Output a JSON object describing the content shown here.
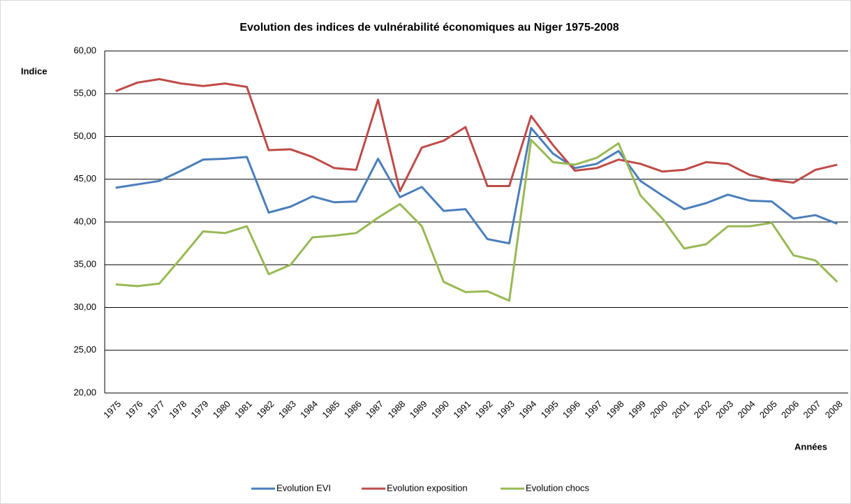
{
  "chart_data": {
    "type": "line",
    "title": "Evolution des indices de vulnérabilité économiques au Niger 1975-2008",
    "y_label": "Indice",
    "x_label": "Années",
    "categories": [
      "1975",
      "1976",
      "1977",
      "1978",
      "1979",
      "1980",
      "1981",
      "1982",
      "1983",
      "1984",
      "1985",
      "1986",
      "1987",
      "1988",
      "1989",
      "1990",
      "1991",
      "1992",
      "1993",
      "1994",
      "1995",
      "1996",
      "1997",
      "1998",
      "1999",
      "2000",
      "2001",
      "2002",
      "2003",
      "2004",
      "2005",
      "2006",
      "2007",
      "2008"
    ],
    "series": [
      {
        "name": "Evolution EVI",
        "color": "#4a7ebb",
        "values": [
          44.0,
          44.4,
          44.8,
          46.0,
          47.3,
          47.4,
          47.6,
          41.1,
          41.8,
          43.0,
          42.3,
          42.4,
          47.4,
          42.9,
          44.1,
          41.3,
          41.5,
          38.0,
          37.5,
          51.0,
          48.0,
          46.3,
          46.8,
          48.3,
          44.8,
          43.1,
          41.5,
          42.2,
          43.2,
          42.5,
          42.4,
          40.4,
          40.8,
          39.8
        ]
      },
      {
        "name": "Evolution exposition",
        "color": "#be4b48",
        "values": [
          55.3,
          56.3,
          56.7,
          56.2,
          55.9,
          56.2,
          55.8,
          48.4,
          48.5,
          47.6,
          46.3,
          46.1,
          54.3,
          43.6,
          48.7,
          49.5,
          51.1,
          44.2,
          44.2,
          52.4,
          49.0,
          46.0,
          46.3,
          47.3,
          46.8,
          45.9,
          46.1,
          47.0,
          46.8,
          45.5,
          44.9,
          44.6,
          46.1,
          46.7
        ]
      },
      {
        "name": "Evolution chocs",
        "color": "#98b954",
        "values": [
          32.7,
          32.5,
          32.8,
          35.8,
          38.9,
          38.7,
          39.5,
          33.9,
          35.0,
          38.2,
          38.4,
          38.7,
          40.5,
          42.1,
          39.5,
          33.0,
          31.8,
          31.9,
          30.8,
          49.6,
          47.0,
          46.7,
          47.5,
          49.2,
          43.1,
          40.4,
          36.9,
          37.4,
          39.5,
          39.5,
          39.9,
          36.1,
          35.5,
          33.0
        ]
      }
    ],
    "ylim": [
      20,
      60
    ],
    "yticks": [
      {
        "value": 20,
        "label": "20,00"
      },
      {
        "value": 25,
        "label": "25,00"
      },
      {
        "value": 30,
        "label": "30,00"
      },
      {
        "value": 35,
        "label": "35,00"
      },
      {
        "value": 40,
        "label": "40,00"
      },
      {
        "value": 45,
        "label": "45,00"
      },
      {
        "value": 50,
        "label": "50,00"
      },
      {
        "value": 55,
        "label": "55,00"
      },
      {
        "value": 60,
        "label": "60,00"
      }
    ],
    "grid": true,
    "legend": "bottom"
  }
}
